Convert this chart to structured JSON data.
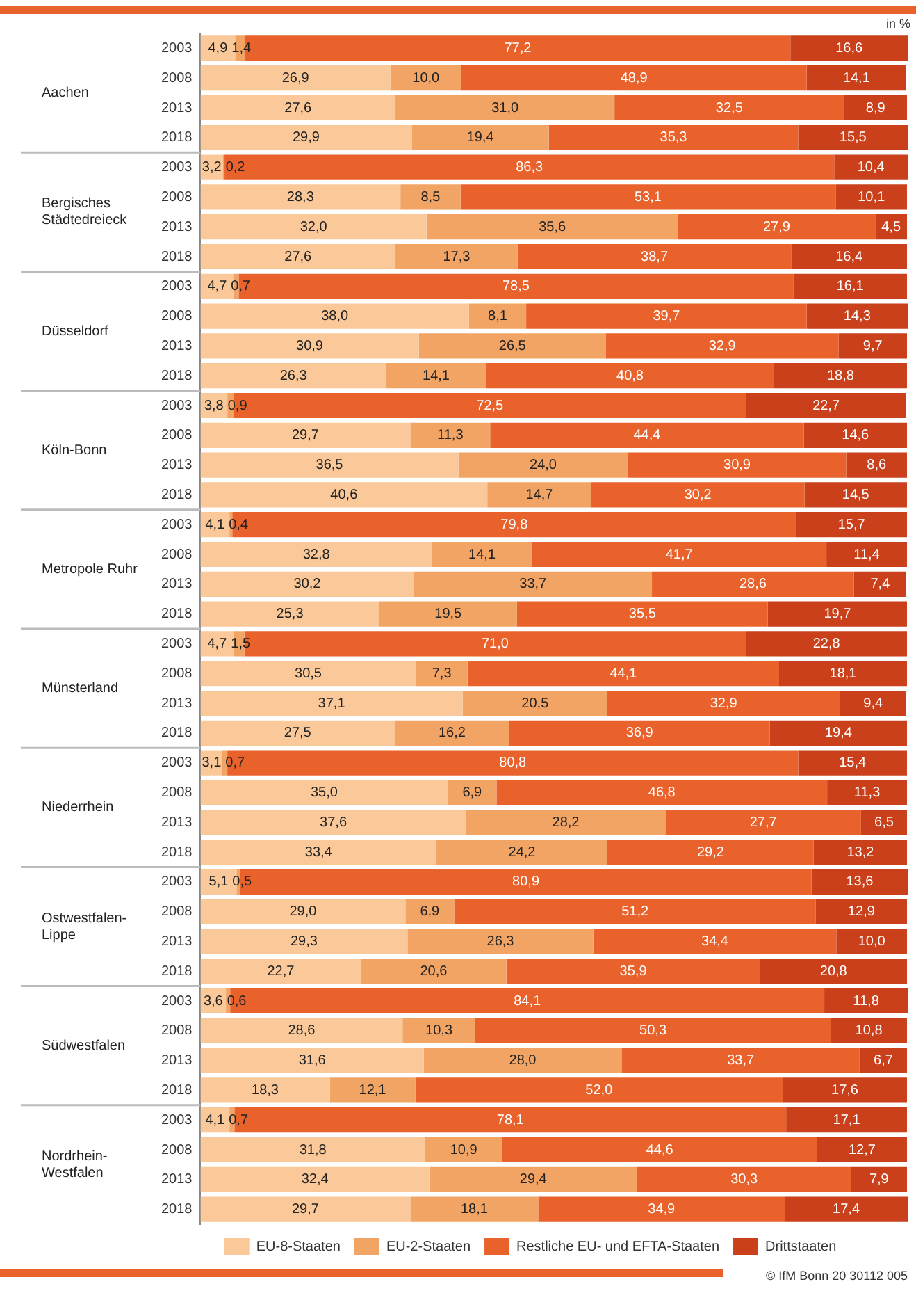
{
  "chart_data": {
    "type": "bar",
    "orientation": "horizontal",
    "stacked": true,
    "tick_labels": "y",
    "grid": false,
    "legend": "bottom",
    "categories": [
      "2003",
      "2008",
      "2013",
      "2018",
      "2003",
      "2008",
      "2013",
      "2018",
      "2003",
      "2008",
      "2013",
      "2018",
      "2003",
      "2008",
      "2013",
      "2018",
      "2003",
      "2008",
      "2013",
      "2018",
      "2003",
      "2008",
      "2013",
      "2018",
      "2003",
      "2008",
      "2013",
      "2018",
      "2003",
      "2008",
      "2013",
      "2018",
      "2003",
      "2008",
      "2013",
      "2018",
      "2003",
      "2008",
      "2013",
      "2018"
    ],
    "series": [
      {
        "name": "EU-8-Staaten",
        "color": "#fbc999",
        "values": [
          4.9,
          26.9,
          27.6,
          29.9,
          3.2,
          28.3,
          32.0,
          27.6,
          4.7,
          38.0,
          30.9,
          26.3,
          3.8,
          29.7,
          36.5,
          40.6,
          4.1,
          32.8,
          30.2,
          25.3,
          4.7,
          30.5,
          37.1,
          27.5,
          3.1,
          35.0,
          37.6,
          33.4,
          5.1,
          29.0,
          29.3,
          22.7,
          3.6,
          28.6,
          31.6,
          18.3,
          4.1,
          31.8,
          32.4,
          29.7
        ],
        "value_labels": [
          "4,9",
          "26,9",
          "27,6",
          "29,9",
          "3,2",
          "28,3",
          "32,0",
          "27,6",
          "4,7",
          "38,0",
          "30,9",
          "26,3",
          "3,8",
          "29,7",
          "36,5",
          "40,6",
          "4,1",
          "32,8",
          "30,2",
          "25,3",
          "4,7",
          "30,5",
          "37,1",
          "27,5",
          "3,1",
          "35,0",
          "37,6",
          "33,4",
          "5,1",
          "29,0",
          "29,3",
          "22,7",
          "3,6",
          "28,6",
          "31,6",
          "18,3",
          "4,1",
          "31,8",
          "32,4",
          "29,7"
        ]
      },
      {
        "name": "EU-2-Staaten",
        "color": "#f2a464",
        "values": [
          1.4,
          10.0,
          31.0,
          19.4,
          0.2,
          8.5,
          35.6,
          17.3,
          0.7,
          8.1,
          26.5,
          14.1,
          0.9,
          11.3,
          24.0,
          14.7,
          0.4,
          14.1,
          33.7,
          19.5,
          1.5,
          7.3,
          20.5,
          16.2,
          0.7,
          6.9,
          28.2,
          24.2,
          0.5,
          6.9,
          26.3,
          20.6,
          0.6,
          10.3,
          28.0,
          12.1,
          0.7,
          10.9,
          29.4,
          18.1
        ],
        "value_labels": [
          "1,4",
          "10,0",
          "31,0",
          "19,4",
          "0,2",
          "8,5",
          "35,6",
          "17,3",
          "0,7",
          "8,1",
          "26,5",
          "14,1",
          "0,9",
          "11,3",
          "24,0",
          "14,7",
          "0,4",
          "14,1",
          "33,7",
          "19,5",
          "1,5",
          "7,3",
          "20,5",
          "16,2",
          "0,7",
          "6,9",
          "28,2",
          "24,2",
          "0,5",
          "6,9",
          "26,3",
          "20,6",
          "0,6",
          "10,3",
          "28,0",
          "12,1",
          "0,7",
          "10,9",
          "29,4",
          "18,1"
        ]
      },
      {
        "name": "Restliche EU- und EFTA-Staaten",
        "color": "#e9622c",
        "values": [
          77.2,
          48.9,
          32.5,
          35.3,
          86.3,
          53.1,
          27.9,
          38.7,
          78.5,
          39.7,
          32.9,
          40.8,
          72.5,
          44.4,
          30.9,
          30.2,
          79.8,
          41.7,
          28.6,
          35.5,
          71.0,
          44.1,
          32.9,
          36.9,
          80.8,
          46.8,
          27.7,
          29.2,
          80.9,
          51.2,
          34.4,
          35.9,
          84.1,
          50.3,
          33.7,
          52.0,
          78.1,
          44.6,
          30.3,
          34.9
        ],
        "value_labels": [
          "77,2",
          "48,9",
          "32,5",
          "35,3",
          "86,3",
          "53,1",
          "27,9",
          "38,7",
          "78,5",
          "39,7",
          "32,9",
          "40,8",
          "72,5",
          "44,4",
          "30,9",
          "30,2",
          "79,8",
          "41,7",
          "28,6",
          "35,5",
          "71,0",
          "44,1",
          "32,9",
          "36,9",
          "80,8",
          "46,8",
          "27,7",
          "29,2",
          "80,9",
          "51,2",
          "34,4",
          "35,9",
          "84,1",
          "50,3",
          "33,7",
          "52,0",
          "78,1",
          "44,6",
          "30,3",
          "34,9"
        ]
      },
      {
        "name": "Drittstaaten",
        "color": "#c9401b",
        "values": [
          16.6,
          14.1,
          8.9,
          15.5,
          10.4,
          10.1,
          4.5,
          16.4,
          16.1,
          14.3,
          9.7,
          18.8,
          22.7,
          14.6,
          8.6,
          14.5,
          15.7,
          11.4,
          7.4,
          19.7,
          22.8,
          18.1,
          9.4,
          19.4,
          15.4,
          11.3,
          6.5,
          13.2,
          13.6,
          12.9,
          10.0,
          20.8,
          11.8,
          10.8,
          6.7,
          17.6,
          17.1,
          12.7,
          7.9,
          17.4
        ],
        "value_labels": [
          "16,6",
          "14,1",
          "8,9",
          "15,5",
          "10,4",
          "10,1",
          "4,5",
          "16,4",
          "16,1",
          "14,3",
          "9,7",
          "18,8",
          "22,7",
          "14,6",
          "8,6",
          "14,5",
          "15,7",
          "11,4",
          "7,4",
          "19,7",
          "22,8",
          "18,1",
          "9,4",
          "19,4",
          "15,4",
          "11,3",
          "6,5",
          "13,2",
          "13,6",
          "12,9",
          "10,0",
          "20,8",
          "11,8",
          "10,8",
          "6,7",
          "17,6",
          "17,1",
          "12,7",
          "7,9",
          "17,4"
        ]
      }
    ],
    "annotations": [
      "in %",
      "Aachen",
      "Bergisches Städtedreieck",
      "Düsseldorf",
      "Köln-Bonn",
      "Metropole Ruhr",
      "Münsterland",
      "Niederrhein",
      "Ostwestfalen-Lippe",
      "Südwestfalen",
      "Nordrhein-Westfalen",
      "© IfM Bonn 20 30112 005"
    ]
  }
}
